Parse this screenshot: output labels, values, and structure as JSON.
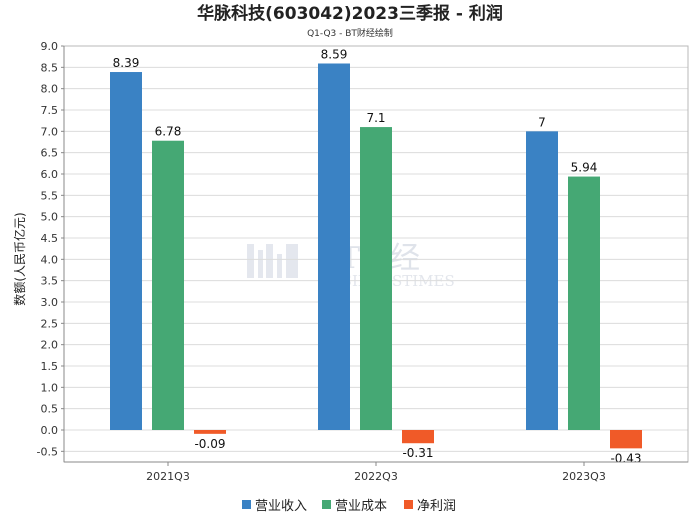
{
  "watermark": {
    "main": "BT财经",
    "sub": "BUSINESSTIMES"
  },
  "chart_data": {
    "type": "bar",
    "title": "华脉科技(603042)2023三季报 - 利润",
    "subtitle": "Q1-Q3 - BT财经绘制",
    "ylabel": "数额(人民币亿元)",
    "xlabel": "",
    "categories": [
      "2021Q3",
      "2022Q3",
      "2023Q3"
    ],
    "ylim": [
      -0.75,
      9.0
    ],
    "yticks": [
      -0.5,
      0.0,
      0.5,
      1.0,
      1.5,
      2.0,
      2.5,
      3.0,
      3.5,
      4.0,
      4.5,
      5.0,
      5.5,
      6.0,
      6.5,
      7.0,
      7.5,
      8.0,
      8.5,
      9.0
    ],
    "grid": true,
    "legend_position": "bottom",
    "series": [
      {
        "name": "营业收入",
        "color": "#3a82c4",
        "values": [
          8.39,
          8.59,
          7
        ],
        "labels": [
          "8.39",
          "8.59",
          "7"
        ]
      },
      {
        "name": "营业成本",
        "color": "#45a874",
        "values": [
          6.78,
          7.1,
          5.94
        ],
        "labels": [
          "6.78",
          "7.1",
          "5.94"
        ]
      },
      {
        "name": "净利润",
        "color": "#f05a28",
        "values": [
          -0.09,
          -0.31,
          -0.43
        ],
        "labels": [
          "-0.09",
          "-0.31",
          "-0.43"
        ]
      }
    ]
  }
}
